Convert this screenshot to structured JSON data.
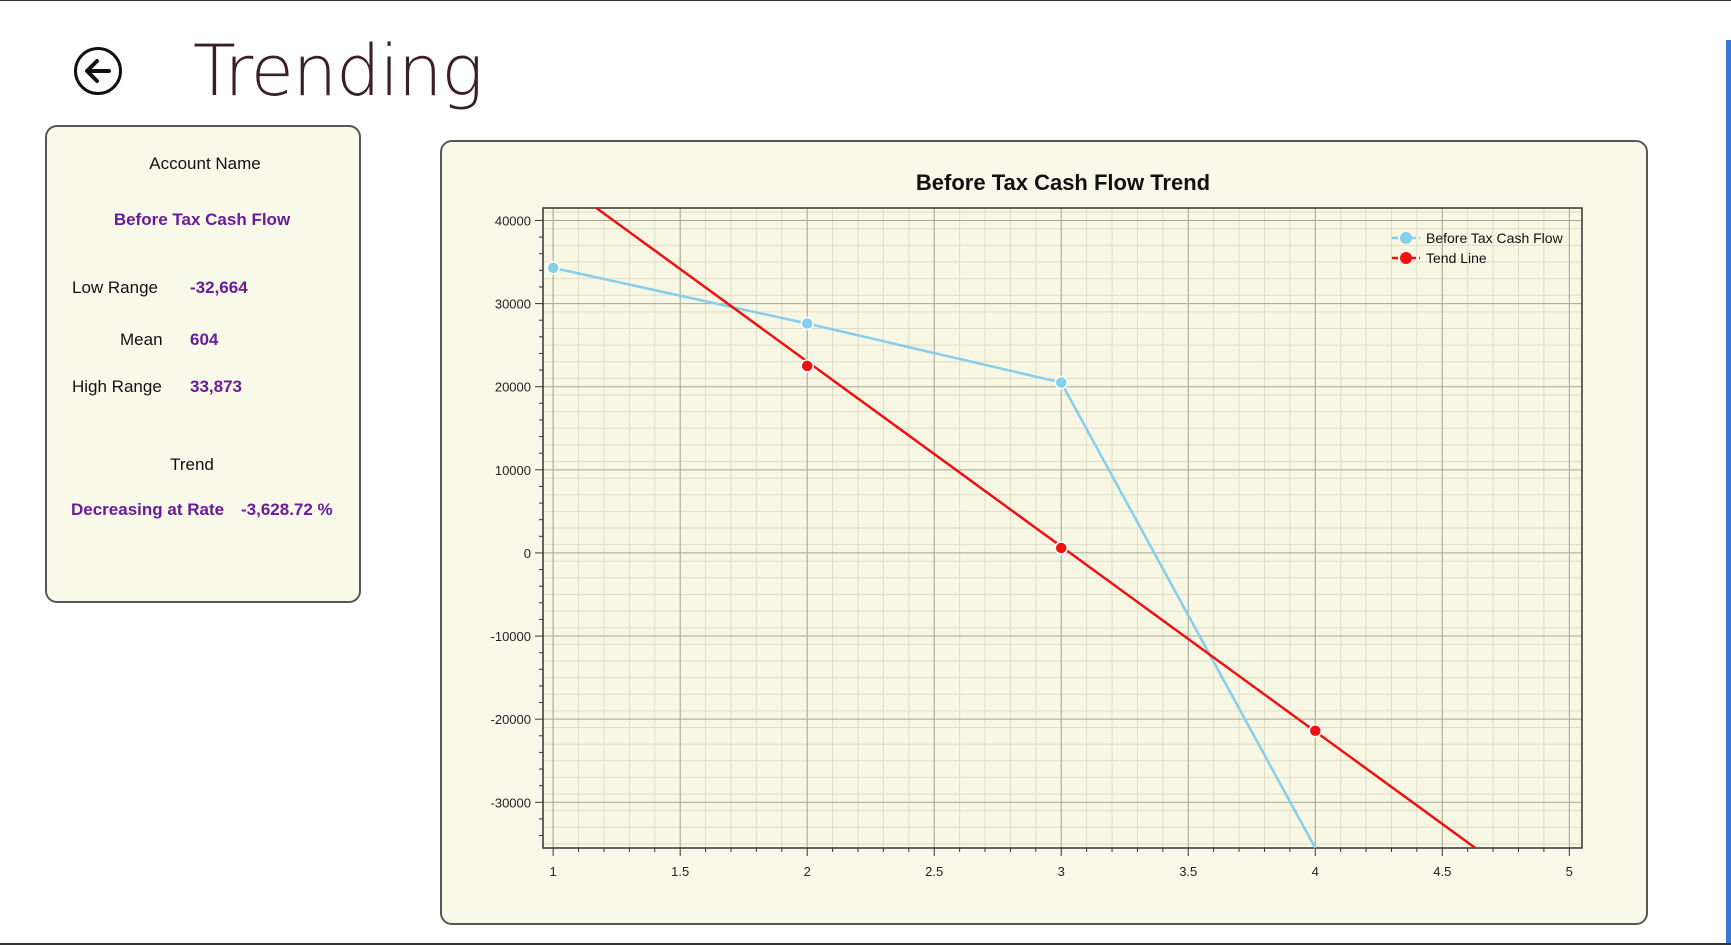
{
  "page": {
    "title": "Trending",
    "back_icon": "arrow-left-icon"
  },
  "info": {
    "account_label": "Account Name",
    "account_value": "Before Tax Cash Flow",
    "low_label": "Low Range",
    "low_value": "-32,664",
    "mean_label": "Mean",
    "mean_value": "604",
    "high_label": "High Range",
    "high_value": "33,873",
    "trend_label": "Trend",
    "trend_direction": "Decreasing at Rate",
    "trend_rate": "-3,628.72 %"
  },
  "colors": {
    "panel_bg": "#f9f9ea",
    "accent_text": "#6a1b9a",
    "series_cash_flow": "#87ceeb",
    "series_trend": "#ee1111"
  },
  "chart_data": {
    "type": "line",
    "title": "Before Tax Cash Flow  Trend",
    "xlim": [
      0.96,
      5.05
    ],
    "ylim": [
      -35500,
      41500
    ],
    "x_ticks": [
      1,
      1.5,
      2,
      2.5,
      3,
      3.5,
      4,
      4.5,
      5
    ],
    "x_tick_labels": [
      "1",
      "1.5",
      "2",
      "2.5",
      "3",
      "3.5",
      "4",
      "4.5",
      "5"
    ],
    "y_ticks": [
      40000,
      30000,
      20000,
      10000,
      0,
      -10000,
      -20000,
      -30000
    ],
    "y_tick_labels": [
      "40000",
      "30000",
      "20000",
      "10000",
      "0",
      "-10000",
      "-20000",
      "-30000"
    ],
    "grid": true,
    "legend_position": "top-right",
    "series": [
      {
        "name": "Before Tax Cash Flow",
        "color": "#87ceeb",
        "x": [
          1,
          2,
          3,
          4
        ],
        "y": [
          34300,
          27600,
          20500,
          -35500
        ]
      },
      {
        "name": "Tend Line",
        "color": "#ee1111",
        "x": [
          2,
          3,
          4
        ],
        "y": [
          22500,
          600,
          -21400
        ],
        "line_from": [
          1.17,
          41500
        ],
        "line_to": [
          4.63,
          -35500
        ]
      }
    ]
  }
}
